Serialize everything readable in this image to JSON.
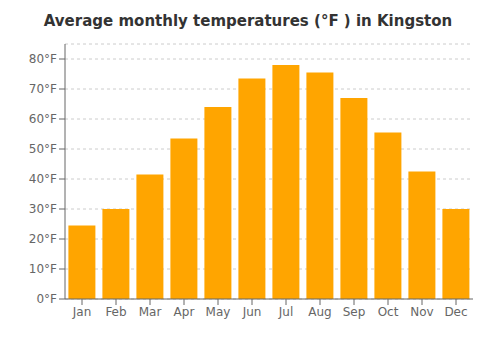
{
  "chart_data": {
    "type": "bar",
    "title": "Average monthly temperatures (°F ) in Kingston",
    "categories": [
      "Jan",
      "Feb",
      "Mar",
      "Apr",
      "May",
      "Jun",
      "Jul",
      "Aug",
      "Sep",
      "Oct",
      "Nov",
      "Dec"
    ],
    "values": [
      24.5,
      30.0,
      41.5,
      53.5,
      64.0,
      73.5,
      78.0,
      75.5,
      67.0,
      55.5,
      42.5,
      30.0
    ],
    "color": "#FFA500",
    "ylim": [
      0,
      85
    ],
    "yticks": [
      {
        "value": 0,
        "label": "0°F"
      },
      {
        "value": 10,
        "label": "10°F"
      },
      {
        "value": 20,
        "label": "20°F"
      },
      {
        "value": 30,
        "label": "30°F"
      },
      {
        "value": 40,
        "label": "40°F"
      },
      {
        "value": 50,
        "label": "50°F"
      },
      {
        "value": 60,
        "label": "60°F"
      },
      {
        "value": 70,
        "label": "70°F"
      },
      {
        "value": 80,
        "label": "80°F"
      }
    ],
    "grid": true
  }
}
